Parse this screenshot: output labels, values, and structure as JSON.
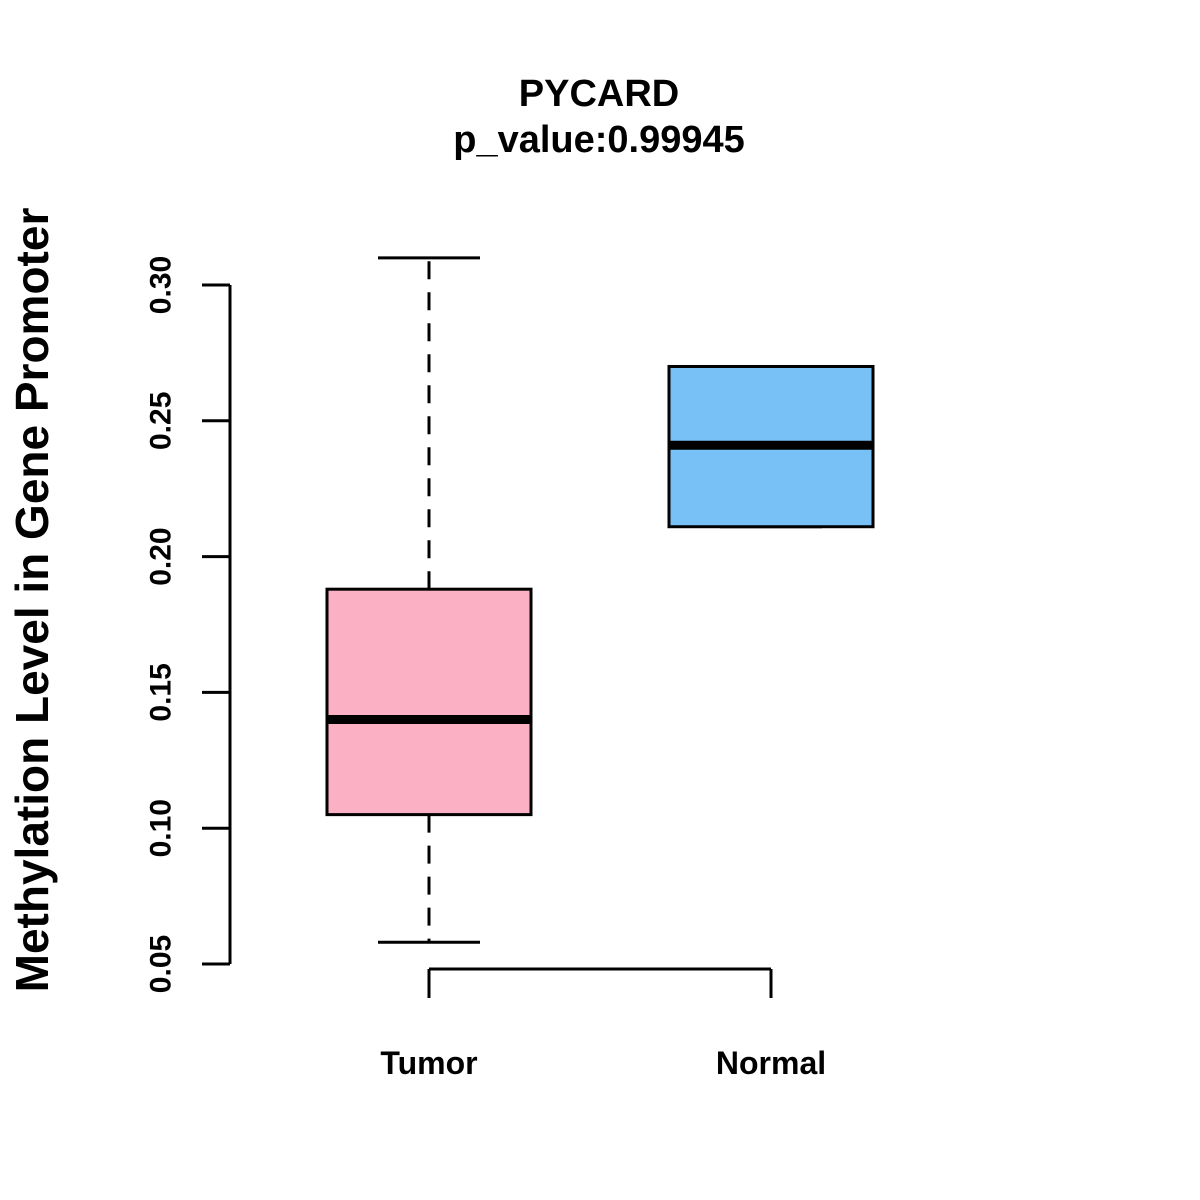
{
  "chart_data": {
    "type": "box",
    "title": "PYCARD",
    "subtitle": "p_value:0.99945",
    "xlabel": "",
    "ylabel": "Methylation Level in Gene Promoter",
    "ylim": [
      0.05,
      0.3
    ],
    "yticks": [
      0.05,
      0.1,
      0.15,
      0.2,
      0.25,
      0.3
    ],
    "ytick_labels": [
      "0.05",
      "0.10",
      "0.15",
      "0.20",
      "0.25",
      "0.30"
    ],
    "categories": [
      "Tumor",
      "Normal"
    ],
    "boxes": [
      {
        "name": "Tumor",
        "whisker_low": 0.058,
        "q1": 0.105,
        "median": 0.14,
        "q3": 0.188,
        "whisker_high": 0.31,
        "color": "#FBB1C3"
      },
      {
        "name": "Normal",
        "whisker_low": 0.211,
        "q1": 0.211,
        "median": 0.241,
        "q3": 0.27,
        "whisker_high": 0.27,
        "color": "#78C1F7"
      }
    ],
    "grid": false,
    "legend": "none"
  }
}
